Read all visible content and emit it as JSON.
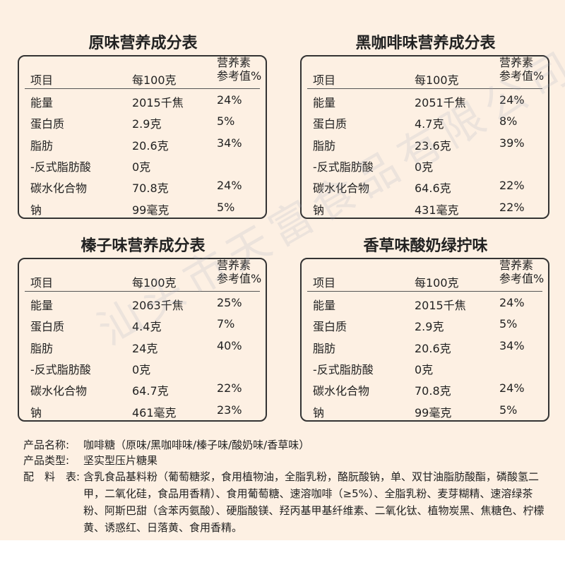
{
  "tables": [
    {
      "title": "原味营养成分表",
      "headers": [
        "项目",
        "每100克",
        [
          "营养素",
          "参考值%"
        ]
      ],
      "rows": [
        [
          "能量",
          "2015千焦",
          "24%"
        ],
        [
          "蛋白质",
          "2.9克",
          "5%"
        ],
        [
          "脂肪",
          "20.6克",
          "34%"
        ],
        [
          "-反式脂肪酸",
          "0克"
        ],
        [
          "碳水化合物",
          "70.8克",
          "24%"
        ],
        [
          "钠",
          "99毫克",
          "5%"
        ]
      ]
    },
    {
      "title": "黑咖啡味营养成分表",
      "headers": [
        "项目",
        "每100克",
        [
          "营养素",
          "参考值%"
        ]
      ],
      "rows": [
        [
          "能量",
          "2051千焦",
          "24%"
        ],
        [
          "蛋白质",
          "4.7克",
          "8%"
        ],
        [
          "脂肪",
          "23.6克",
          "39%"
        ],
        [
          "-反式脂肪酸",
          "0克"
        ],
        [
          "碳水化合物",
          "64.6克",
          "22%"
        ],
        [
          "钠",
          "431毫克",
          "22%"
        ]
      ]
    },
    {
      "title": "榛子味营养成分表",
      "headers": [
        "项目",
        "每100克",
        [
          "营养素",
          "参考值%"
        ]
      ],
      "rows": [
        [
          "能量",
          "2063千焦",
          "25%"
        ],
        [
          "蛋白质",
          "4.4克",
          "7%"
        ],
        [
          "脂肪",
          "24克",
          "40%"
        ],
        [
          "-反式脂肪酸",
          "0克"
        ],
        [
          "碳水化合物",
          "64.7克",
          "22%"
        ],
        [
          "钠",
          "461毫克",
          "23%"
        ]
      ]
    },
    {
      "title": "香草味酸奶绿拧味",
      "headers": [
        "项目",
        "每100克",
        [
          "营养素",
          "参考值%"
        ]
      ],
      "rows": [
        [
          "能量",
          "2015千焦",
          "24%"
        ],
        [
          "蛋白质",
          "2.9克",
          "5%"
        ],
        [
          "脂肪",
          "20.6克",
          "34%"
        ],
        [
          "-反式脂肪酸",
          "0克"
        ],
        [
          "碳水化合物",
          "70.8克",
          "24%"
        ],
        [
          "钠",
          "99毫克",
          "5%"
        ]
      ]
    }
  ],
  "info": [
    {
      "label": "产品名称:",
      "value": "咖啡糖（原味/黑咖啡味/榛子味/酸奶味/香草味）"
    },
    {
      "label": "产品类型:",
      "value": "坚实型压片糖果"
    },
    {
      "label": "配　料　表:",
      "value": "含乳食品基料粉（葡萄糖浆，食用植物油，全脂乳粉，酪朊酸钠，单、双甘油脂肪酸酯，磷酸氢二甲，二氧化硅，食品用香精）、食用葡萄糖、速溶咖啡（≥5%）、全脂乳粉、麦芽糊精、速溶绿茶粉、阿斯巴甜（含苯丙氨酸）、硬脂酸镁、羟丙基甲基纤维素、二氧化钛、植物炭黑、焦糖色、柠檬黄、诱惑红、日落黄、食用香精。"
    }
  ],
  "watermark": "汕头市天富食品有限公司"
}
